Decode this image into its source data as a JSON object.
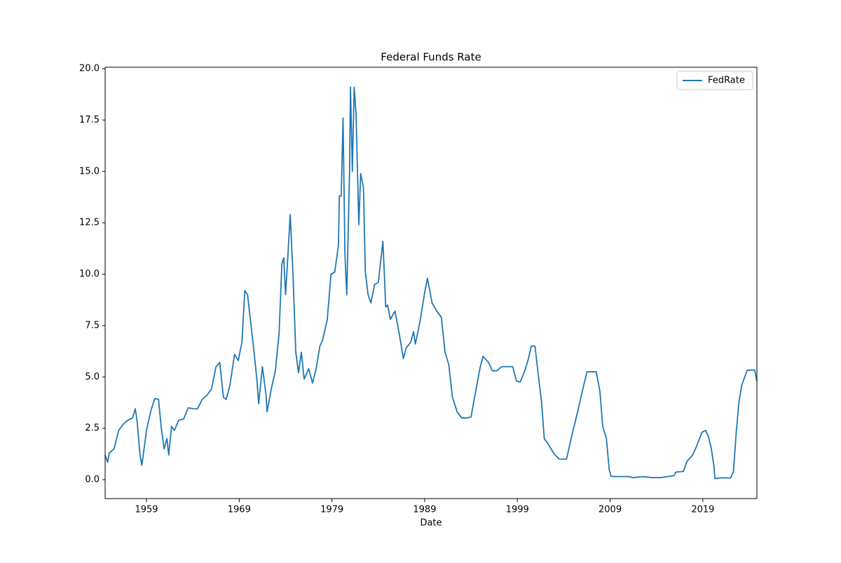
{
  "chart_data": {
    "type": "line",
    "title": "Federal Funds Rate",
    "x_label": "Date",
    "x": [
      1954.54,
      1954.8,
      1955.0,
      1955.5,
      1956.0,
      1956.5,
      1957.0,
      1957.5,
      1957.8,
      1958.0,
      1958.3,
      1958.5,
      1958.8,
      1959.0,
      1959.5,
      1959.9,
      1960.3,
      1960.6,
      1960.9,
      1961.2,
      1961.4,
      1961.7,
      1962.0,
      1962.5,
      1963.0,
      1963.5,
      1964.0,
      1964.5,
      1965.0,
      1965.5,
      1966.0,
      1966.5,
      1966.9,
      1967.3,
      1967.6,
      1968.0,
      1968.5,
      1968.9,
      1969.3,
      1969.6,
      1969.9,
      1970.2,
      1970.6,
      1970.9,
      1971.1,
      1971.5,
      1971.9,
      1972.0,
      1972.5,
      1972.9,
      1973.3,
      1973.6,
      1973.8,
      1974.0,
      1974.2,
      1974.5,
      1974.8,
      1975.1,
      1975.4,
      1975.7,
      1976.0,
      1976.5,
      1976.9,
      1977.3,
      1977.7,
      1978.0,
      1978.5,
      1978.9,
      1979.3,
      1979.7,
      1979.8,
      1980.0,
      1980.2,
      1980.4,
      1980.6,
      1980.9,
      1981.0,
      1981.2,
      1981.4,
      1981.6,
      1981.9,
      1982.1,
      1982.4,
      1982.6,
      1982.9,
      1983.2,
      1983.6,
      1984.0,
      1984.5,
      1984.8,
      1985.0,
      1985.3,
      1985.8,
      1986.3,
      1986.7,
      1987.0,
      1987.5,
      1987.8,
      1988.0,
      1988.5,
      1989.0,
      1989.3,
      1989.8,
      1990.3,
      1990.8,
      1991.2,
      1991.6,
      1992.0,
      1992.5,
      1993.0,
      1993.5,
      1994.0,
      1994.5,
      1995.0,
      1995.3,
      1995.9,
      1996.3,
      1996.8,
      1997.3,
      1997.8,
      1998.5,
      1998.9,
      1999.3,
      1999.8,
      2000.2,
      2000.5,
      2000.9,
      2001.2,
      2001.6,
      2001.9,
      2002.3,
      2002.9,
      2003.5,
      2004.3,
      2004.9,
      2005.5,
      2006.0,
      2006.5,
      2007.5,
      2007.9,
      2008.2,
      2008.6,
      2008.9,
      2009.1,
      2010.0,
      2011.0,
      2011.5,
      2012.5,
      2013.5,
      2014.5,
      2015.9,
      2016.1,
      2016.9,
      2017.3,
      2017.9,
      2018.3,
      2018.9,
      2019.3,
      2019.6,
      2019.9,
      2020.2,
      2020.3,
      2021.0,
      2022.0,
      2022.3,
      2022.6,
      2022.9,
      2023.2,
      2023.6,
      2023.8,
      2024.6,
      2024.83
    ],
    "series": [
      {
        "name": "FedRate",
        "color": "#1f77b4",
        "values": [
          1.2,
          0.85,
          1.3,
          1.5,
          2.4,
          2.7,
          2.9,
          3.0,
          3.45,
          2.8,
          1.2,
          0.7,
          1.7,
          2.4,
          3.4,
          3.95,
          3.9,
          2.5,
          1.5,
          2.0,
          1.2,
          2.6,
          2.4,
          2.9,
          2.95,
          3.5,
          3.45,
          3.45,
          3.9,
          4.1,
          4.4,
          5.5,
          5.7,
          4.0,
          3.9,
          4.6,
          6.1,
          5.8,
          6.7,
          9.2,
          9.0,
          7.8,
          6.2,
          4.9,
          3.7,
          5.5,
          4.1,
          3.3,
          4.5,
          5.3,
          7.1,
          10.5,
          10.8,
          9.0,
          10.5,
          12.9,
          10.0,
          6.2,
          5.2,
          6.2,
          4.9,
          5.4,
          4.7,
          5.4,
          6.5,
          6.8,
          7.8,
          10.0,
          10.1,
          11.4,
          13.8,
          13.8,
          17.6,
          11.0,
          9.0,
          15.0,
          19.1,
          15.0,
          19.1,
          17.8,
          12.4,
          14.9,
          14.2,
          10.1,
          9.0,
          8.6,
          9.5,
          9.6,
          11.6,
          8.4,
          8.5,
          7.8,
          8.2,
          7.0,
          5.9,
          6.4,
          6.7,
          7.2,
          6.6,
          7.7,
          9.1,
          9.8,
          8.6,
          8.2,
          7.9,
          6.2,
          5.6,
          4.0,
          3.3,
          3.0,
          3.0,
          3.05,
          4.3,
          5.5,
          6.0,
          5.7,
          5.3,
          5.3,
          5.5,
          5.5,
          5.5,
          4.8,
          4.75,
          5.3,
          5.9,
          6.5,
          6.5,
          5.3,
          3.8,
          2.0,
          1.75,
          1.3,
          1.0,
          1.0,
          2.2,
          3.3,
          4.3,
          5.25,
          5.25,
          4.3,
          2.6,
          2.0,
          0.5,
          0.16,
          0.15,
          0.15,
          0.1,
          0.15,
          0.1,
          0.1,
          0.2,
          0.37,
          0.4,
          0.9,
          1.2,
          1.6,
          2.3,
          2.4,
          2.1,
          1.55,
          0.65,
          0.05,
          0.09,
          0.08,
          0.4,
          2.3,
          3.8,
          4.6,
          5.1,
          5.33,
          5.33,
          4.8
        ]
      }
    ],
    "xlim": [
      1954.54,
      2024.83
    ],
    "xticks": [
      1959,
      1969,
      1979,
      1989,
      1999,
      2009,
      2019
    ],
    "ylim": [
      -0.92,
      20.07
    ],
    "yticks": [
      {
        "value": 0,
        "label": "0.0"
      },
      {
        "value": 2.5,
        "label": "2.5"
      },
      {
        "value": 5,
        "label": "5.0"
      },
      {
        "value": 7.5,
        "label": "7.5"
      },
      {
        "value": 10,
        "label": "10.0"
      },
      {
        "value": 12.5,
        "label": "12.5"
      },
      {
        "value": 15,
        "label": "15.0"
      },
      {
        "value": 17.5,
        "label": "17.5"
      },
      {
        "value": 20,
        "label": "20.0"
      }
    ],
    "legend": "upper right"
  }
}
